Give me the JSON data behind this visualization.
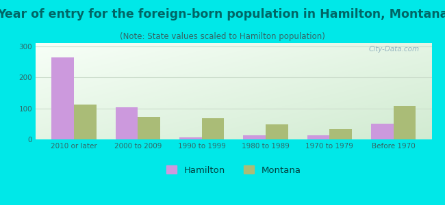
{
  "title": "Year of entry for the foreign-born population in Hamilton, Montana",
  "subtitle": "(Note: State values scaled to Hamilton population)",
  "categories": [
    "2010 or later",
    "2000 to 2009",
    "1990 to 1999",
    "1980 to 1989",
    "1970 to 1979",
    "Before 1970"
  ],
  "hamilton_values": [
    263,
    104,
    7,
    13,
    13,
    50
  ],
  "montana_values": [
    113,
    72,
    68,
    48,
    32,
    107
  ],
  "hamilton_color": "#cc99dd",
  "montana_color": "#aabc77",
  "background_outer": "#00e8e8",
  "ylim": [
    0,
    310
  ],
  "yticks": [
    0,
    100,
    200,
    300
  ],
  "bar_width": 0.35,
  "title_fontsize": 12.5,
  "subtitle_fontsize": 8.5,
  "tick_fontsize": 7.5,
  "legend_fontsize": 9.5,
  "title_color": "#006666",
  "subtitle_color": "#336666",
  "tick_color": "#336666",
  "watermark_text": "City-Data.com",
  "grid_color": "#ccddcc"
}
